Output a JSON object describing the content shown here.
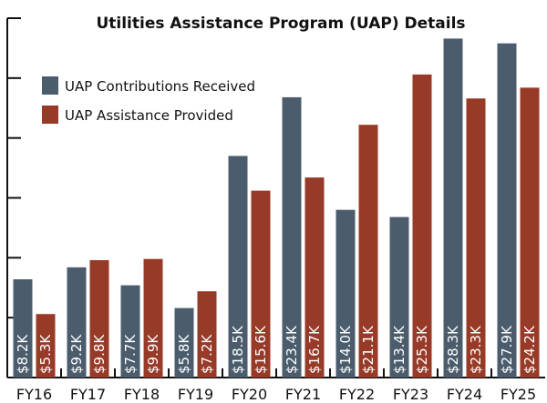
{
  "chart_data": {
    "type": "bar",
    "title": "Utilities Assistance Program (UAP) Details",
    "categories": [
      "FY16",
      "FY17",
      "FY18",
      "FY19",
      "FY20",
      "FY21",
      "FY22",
      "FY23",
      "FY24",
      "FY25"
    ],
    "series": [
      {
        "name": "UAP Contributions Received",
        "color": "#4b5d6d",
        "values": [
          8.2,
          9.2,
          7.7,
          5.8,
          18.5,
          23.4,
          14.0,
          13.4,
          28.3,
          27.9
        ],
        "labels": [
          "$8.2K",
          "$9.2K",
          "$7.7K",
          "$5.8K",
          "$18.5K",
          "$23.4K",
          "$14.0K",
          "$13.4K",
          "$28.3K",
          "$27.9K"
        ]
      },
      {
        "name": "UAP Assistance Provided",
        "color": "#973a28",
        "values": [
          5.3,
          9.8,
          9.9,
          7.2,
          15.6,
          16.7,
          21.1,
          25.3,
          23.3,
          24.2
        ],
        "labels": [
          "$5.3K",
          "$9.8K",
          "$9.9K",
          "$7.2K",
          "$15.6K",
          "$16.7K",
          "$21.1K",
          "$25.3K",
          "$23.3K",
          "$24.2K"
        ]
      }
    ],
    "units": "thousands of dollars",
    "ylim": [
      0,
      30
    ],
    "y_ticks": [
      5,
      10,
      15,
      20,
      25,
      30
    ],
    "y_tick_labels_shown": false,
    "grid": false,
    "legend": "top-left"
  }
}
